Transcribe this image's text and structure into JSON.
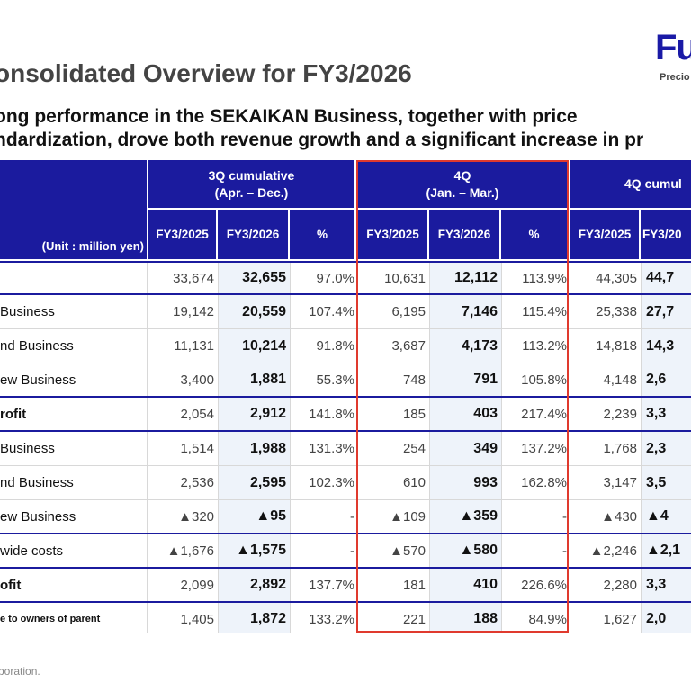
{
  "logo": {
    "text": "Fu",
    "sub": "Precio"
  },
  "title": "onsolidated Overview for FY3/2026",
  "subtitle": {
    "line1": "ong performance in the SEKAIKAN Business, together with price",
    "line2": "ndardization, drove both revenue growth and a significant increase in pr"
  },
  "table": {
    "unit": "(Unit : million yen)",
    "groups": [
      {
        "line1": "3Q cumulative",
        "line2": "(Apr. – Dec.)"
      },
      {
        "line1": "4Q",
        "line2": "(Jan. – Mar.)"
      },
      {
        "line1": "4Q cumul",
        "line2": ""
      }
    ],
    "subheaders": [
      "FY3/2025",
      "FY3/2026",
      "%",
      "FY3/2025",
      "FY3/2026",
      "%",
      "FY3/2025",
      "FY3/20"
    ],
    "rows": [
      {
        "label": "",
        "cells": [
          "33,674",
          "32,655",
          "97.0%",
          "10,631",
          "12,112",
          "113.9%",
          "44,305",
          "44,7"
        ]
      },
      {
        "label": " Business",
        "cells": [
          "19,142",
          "20,559",
          "107.4%",
          "6,195",
          "7,146",
          "115.4%",
          "25,338",
          "27,7"
        ]
      },
      {
        "label": "nd Business",
        "cells": [
          "11,131",
          "10,214",
          "91.8%",
          "3,687",
          "4,173",
          "113.2%",
          "14,818",
          "14,3"
        ]
      },
      {
        "label": "ew Business",
        "cells": [
          "3,400",
          "1,881",
          "55.3%",
          "748",
          "791",
          "105.8%",
          "4,148",
          "2,6"
        ]
      },
      {
        "label": "rofit",
        "cells": [
          "2,054",
          "2,912",
          "141.8%",
          "185",
          "403",
          "217.4%",
          "2,239",
          "3,3"
        ]
      },
      {
        "label": " Business",
        "cells": [
          "1,514",
          "1,988",
          "131.3%",
          "254",
          "349",
          "137.2%",
          "1,768",
          "2,3"
        ]
      },
      {
        "label": "nd Business",
        "cells": [
          "2,536",
          "2,595",
          "102.3%",
          "610",
          "993",
          "162.8%",
          "3,147",
          "3,5"
        ]
      },
      {
        "label": "ew Business",
        "cells": [
          "▲320",
          "▲95",
          "-",
          "▲109",
          "▲359",
          "-",
          "▲430",
          "▲4"
        ]
      },
      {
        "label": "wide costs",
        "cells": [
          "▲1,676",
          "▲1,575",
          "-",
          "▲570",
          "▲580",
          "-",
          "▲2,246",
          "▲2,1"
        ]
      },
      {
        "label": "ofit",
        "cells": [
          "2,099",
          "2,892",
          "137.7%",
          "181",
          "410",
          "226.6%",
          "2,280",
          "3,3"
        ]
      },
      {
        "label": "e to owners of parent",
        "cells": [
          "1,405",
          "1,872",
          "133.2%",
          "221",
          "188",
          "84.9%",
          "1,627",
          "2,0"
        ]
      }
    ]
  },
  "footer": "rporation."
}
